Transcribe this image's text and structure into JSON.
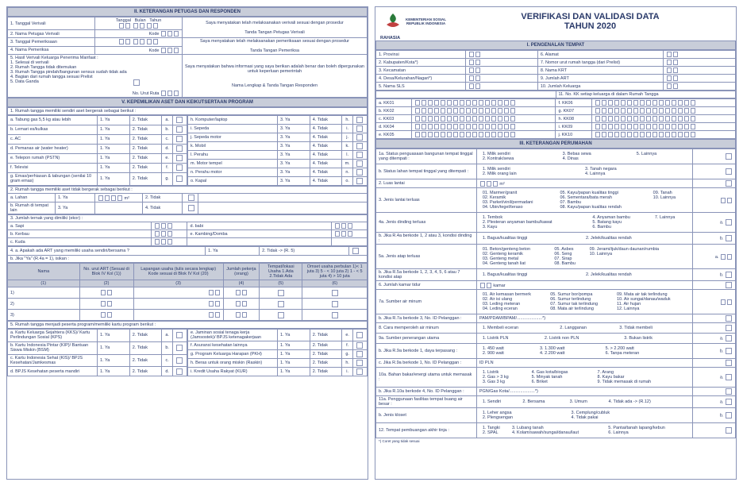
{
  "left": {
    "sec2": {
      "title": "II.  KETERANGAN PETUGAS DAN RESPONDEN",
      "r1": "1. Tanggal Verivali",
      "r1_labels": [
        "Tanggal",
        "Bulan",
        "Tahun"
      ],
      "r1_decl": "Saya menyatakan telah melaksanakan verivali sesuai dengan prosedur",
      "r2": "2. Nama Petugas Verivali",
      "r2_kode": "Kode",
      "r2_sig": "Tanda Tangan Petugas Verivali",
      "r3": "3. Tanggal Pemeriksaan",
      "r3_decl": "Saya menyatakan telah melaksanakan pemeriksaan sesuai dengan prosedur",
      "r4": "4. Nama Pemeriksa",
      "r4_kode": "Kode",
      "r4_sig": "Tanda Tangan Pemeriksa",
      "r5": "5. Hasil Verivali Keluarga Penerima Manfaat :",
      "r5_items": [
        "1. Selesai di verivali",
        "2. Rumah Tangga tidak ditemukan",
        "3. Rumah Tangga pindah/bangunan sensus sudah tidak ada",
        "4. Bagian dari rumah tangga sesuai Prelist",
        "5. Data Ganda"
      ],
      "r5_decl": "Saya menyatakan bahwa informasi yang saya berikan adalah benar dan boleh dipergunakan untuk keperluan pemerintah",
      "r5_nourut": "No. Urut Ruta",
      "r5_sig": "Nama Lengkap & Tanda Tangan Responden"
    },
    "sec5": {
      "title": "V.  KEPEMILIKAN ASET DAN KEIKUTSERTAAN PROGRAM",
      "q1": "1. Rumah tangga memiliki sendiri aset bergerak sebagai berikut :",
      "assets_left": [
        {
          "k": "a",
          "label": "Tabung gas 5,5 kg atau lebih"
        },
        {
          "k": "b",
          "label": "Lemari es/kulkas"
        },
        {
          "k": "c",
          "label": "AC"
        },
        {
          "k": "d",
          "label": "Pemanas air (water heater)"
        },
        {
          "k": "e",
          "label": "Telepon rumah (PSTN)"
        },
        {
          "k": "f",
          "label": "Televisi"
        },
        {
          "k": "g",
          "label": "Emas/perhiasan & tabungan (senilai 10 gram emas)"
        }
      ],
      "assets_right": [
        {
          "k": "h",
          "label": "Komputer/laptop"
        },
        {
          "k": "i",
          "label": "Sepeda"
        },
        {
          "k": "j",
          "label": "Sepeda motor"
        },
        {
          "k": "k",
          "label": "Mobil"
        },
        {
          "k": "l",
          "label": "Perahu"
        },
        {
          "k": "m",
          "label": "Motor tempel"
        },
        {
          "k": "n",
          "label": "Perahu motor"
        },
        {
          "k": "o",
          "label": "Kapal"
        }
      ],
      "yatidak": [
        "3. Ya",
        "4. Tidak"
      ],
      "yatidak12": [
        "1. Ya",
        "2. Tidak"
      ],
      "q2": "2. Rumah tangga memiliki aset tidak bergerak sebagai berikut :",
      "q2a": "a. Lahan",
      "q2b": "b. Rumah di tempat lain",
      "m2": "m²",
      "q3": "3. Jumlah ternak yang dimiliki (ekor) :",
      "q3_items": [
        {
          "k": "a",
          "label": "Sapi"
        },
        {
          "k": "b",
          "label": "Kerbau"
        },
        {
          "k": "c",
          "label": "Kuda"
        },
        {
          "k": "d",
          "label": "babi"
        },
        {
          "k": "e",
          "label": "Kambing/Domba"
        }
      ],
      "q4a": "4. a. Apakah ada ART yang memiliki usaha sendiri/bersama ?",
      "q4a_opts": [
        "1. Ya",
        "2. Tidak -> (R. 5)"
      ],
      "q4b": "b. Jika \"Ya\" (R.4a = 1), isikan :",
      "tbl_hdr": [
        "Nama",
        "No. urut ART (Sesuai di Blok IV Kol (1))",
        "Lapangan usaha (tulis secara lengkap) Kode sesuai di Blok IV Kol (20)",
        "Jumlah pekerja (orang)",
        "Tempat/lokasi Usaha 1.Ada 2.Tidak Ada",
        "Omset usaha perbulan 1)< 1 juta  3) 5 - < 10 juta 2) 1 - < 5 juta 4) > 10 juta"
      ],
      "q5": "5. Rumah tangga menjadi peserta program/memiliki kartu program berikut :",
      "q5_left": [
        {
          "k": "a",
          "label": "Kartu Keluarga Sejahtera (KKS)/ Kartu Perlindungan Sosial (KPS)"
        },
        {
          "k": "b",
          "label": "Kartu Indonesia Pintar (KIP)/ Bantuan Siswa Miskin (BSM)"
        },
        {
          "k": "c",
          "label": "Kartu Indonesia Sehat (KIS)/ BPJS Kesehatan/Jamkesmas"
        },
        {
          "k": "d",
          "label": "BPJS Kesehatan peserta mandiri"
        }
      ],
      "q5_right": [
        {
          "k": "e",
          "label": "Jaminan sosial tenaga kerja (Jamsostek)/ BPJS ketenagakerjaan"
        },
        {
          "k": "f",
          "label": "Asuransi kesehatan lainnya"
        },
        {
          "k": "g",
          "label": "Program Keluarga Harapan (PKH)"
        },
        {
          "k": "h",
          "label": "Beras untuk orang miskin (Raskin)"
        },
        {
          "k": "i",
          "label": "Kredit Usaha Rakyat (KUR)"
        }
      ]
    }
  },
  "right": {
    "header": {
      "ministry1": "KEMENTERIAN SOSIAL",
      "ministry2": "REPUBLIK INDONESIA",
      "rahasia": "RAHASIA",
      "title1": "VERIFIKASI DAN VALIDASI DATA",
      "title2": "TAHUN 2020"
    },
    "sec1": {
      "title": "I.  PENGENALAN TEMPAT",
      "rows": [
        {
          "l": "1. Provinsi",
          "r": "6. Alamat"
        },
        {
          "l": "2. Kabupaten/Kota*)",
          "r": "7. Nomor urut rumah tangga (dari Prelist)"
        },
        {
          "l": "3. Kecamatan",
          "r": "8. Nama KRT"
        },
        {
          "l": "4. Desa/Kelurahan/Nagari*)",
          "r": "9. Jumlah ART"
        },
        {
          "l": "5. Nama SLS",
          "r": "10. Jumlah Keluarga"
        }
      ],
      "r11": "11. No. KK setiap keluarga di dalam Rumah Tangga",
      "kk_left": [
        "a. KK01",
        "b. KK02",
        "c. KK03",
        "d. KK04",
        "e. KK05"
      ],
      "kk_right": [
        "f. KK06",
        "g. KK07",
        "h. KK08",
        "i. KK09",
        "j. KK10"
      ]
    },
    "sec3": {
      "title": "III.  KETERANGAN PERUMAHAN",
      "r1a": "1a. Status penguasaan bangunan tempat tinggal yang ditempati :",
      "r1a_opts": [
        "1. Milik sendiri",
        "2. Kontrak/sewa",
        "3. Bebas sewa",
        "4. Dinas",
        "5. Lainnya"
      ],
      "r1b": "b. Status lahan tempat tinggal yang ditempati :",
      "r1b_opts": [
        "1. Milik sendiri",
        "2. Milik orang lain",
        "3. Tanah negara",
        "4. Lainnya"
      ],
      "r2": "2. Luas lantai",
      "r2_unit": "m²",
      "r3": "3. Jenis lantai terluas",
      "r3_opts": [
        "01. Marmer/granit",
        "02. Keramik",
        "03. Parket/vinil/permadani",
        "04. Ubin/tegel/teraso",
        "05. Kayu/papan kualitas tinggi",
        "06. Sementara/bata merah",
        "07. Bambu",
        "08. Kayu/papan kualitas rendah",
        "09. Tanah",
        "10. Lainnya"
      ],
      "r4a": "4a. Jenis dinding terluas",
      "r4a_opts": [
        "1. Tembok",
        "2. Plesteran anyaman bambu/kawat",
        "3. Kayu",
        "4. Anyaman bambu",
        "5. Batang kayu",
        "6. Bambu",
        "7. Lainnya"
      ],
      "r4b": "b. Jika R.4a berkode 1, 2 atau 3, kondisi dinding :",
      "r4b_opts": [
        "1. Bagus/kualitas tinggi",
        "2. Jelek/kualitas rendah"
      ],
      "r5a": "5a. Jenis atap terluas",
      "r5a_opts": [
        "01. Beton/genteng beton",
        "02. Genteng keramik",
        "03. Genteng metal",
        "04. Genteng tanah liat",
        "05. Asbes",
        "06. Seng",
        "07. Sirap",
        "08. Bambu",
        "09. Jerami/ijuk/daun daunan/rumbia",
        "10. Lainnya"
      ],
      "r5b": "b. Jika R.5a berkode 1, 2, 3, 4, 5, 6 atau 7 kondisi atap",
      "r5b_opts": [
        "1. Bagus/kualitas tinggi",
        "2. Jelek/kualitas rendah"
      ],
      "r6": "6. Jumlah kamar tidur",
      "r6_unit": "kamar",
      "r7a": "7a. Sumber air minum",
      "r7a_opts": [
        "01. Air kemasan bermerk",
        "02. Air isi ulang",
        "03. Leding meteran",
        "04. Leding eceran",
        "05. Sumur bor/pompa",
        "06. Sumur terlindung",
        "07. Sumur tak terlindung",
        "08. Mata air terlindung",
        "09. Mata air tak terlindung",
        "10. Air sungai/danau/waduk",
        "11. Air hujan",
        "12. Lainnya"
      ],
      "r7b": "b. Jika R.7a berkode 3, No. ID Pelanggan :",
      "r7b_blank": "PAM/PDAM/BPAM/.....................*)",
      "r8": "8. Cara memperoleh air minum",
      "r8_opts": [
        "1. Membeli eceran",
        "2. Langganan",
        "3. Tidak membeli"
      ],
      "r9a": "9a. Sumber penerangan utama",
      "r9a_opts": [
        "1. Listrik PLN",
        "2. Listrik non PLN",
        "3. Bukan listrik"
      ],
      "r9b": "b. Jika R.9a berkode 1, daya terpasang :",
      "r9b_opts": [
        "1. 450 watt",
        "2. 900 watt",
        "3. 1.300 watt",
        "4. 2.200 watt",
        "5. > 2.200 watt",
        "6. Tanpa meteran"
      ],
      "r9c": "c. Jika R.9a berkode 1, No. ID Pelanggan :",
      "r9c_blank": "ID PLN",
      "r10a": "10a. Bahan bakar/energi utama untuk memasak :",
      "r10a_opts": [
        "1. Listrik",
        "2. Gas > 3 kg",
        "3. Gas 3 kg",
        "4. Gas kota/biogas",
        "5. Minyak tanah",
        "6. Briket",
        "7. Arang",
        "8. Kayu bakar",
        "9. Tidak memasak di rumah"
      ],
      "r10b": "b. Jika R.10a berkode 4, No. ID Pelanggan :",
      "r10b_blank": "PGN/Gas Kota/.....................*)",
      "r11a": "11a. Penggunaan fasilitas tempat buang air besar :",
      "r11a_opts": [
        "1. Sendiri",
        "2. Bersama",
        "3. Umum",
        "4. Tidak ada -> (R.12)"
      ],
      "r11b": "b. Jenis kloset",
      "r11b_opts": [
        "1. Leher angsa",
        "2. Plengsengan",
        "3. Cemplung/cubluk",
        "4. Tidak pakai"
      ],
      "r12": "12. Tempat pembuangan akhir tinja :",
      "r12_opts": [
        "1. Tangki",
        "2. SPAL",
        "3. Lubang tanah",
        "4. Kolam/sawah/sungai/danau/laut",
        "5. Pantai/tanah lapang/kebun",
        "6. Lainnya"
      ],
      "footnote": "*) Coret yang tidak sesuai"
    }
  }
}
